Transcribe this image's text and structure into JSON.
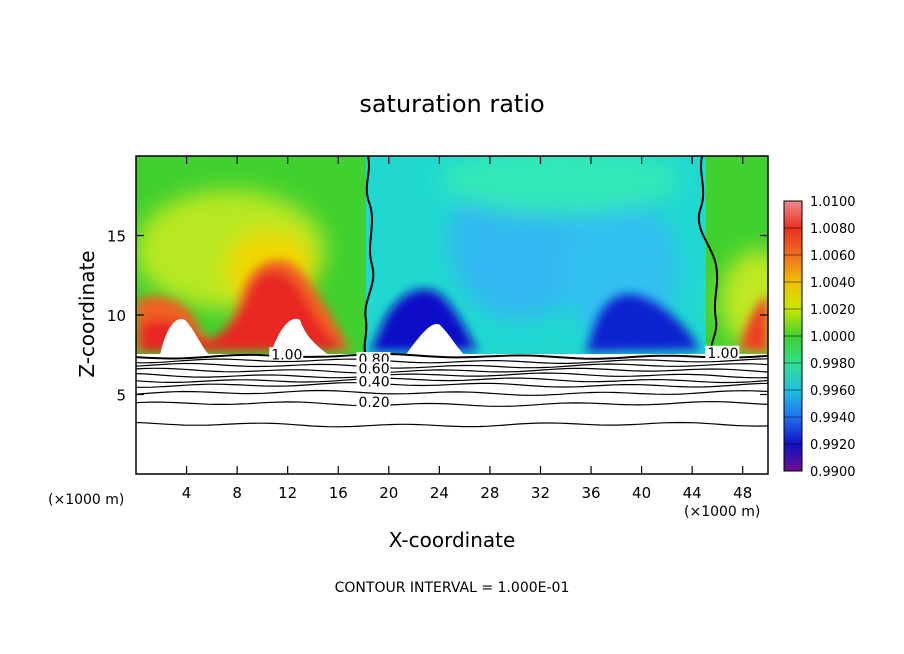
{
  "chart_data": {
    "type": "heatmap",
    "title": "saturation ratio",
    "xlabel": "X-coordinate",
    "ylabel": "Z-coordinate",
    "x_unit_label": "(×1000 m)",
    "x_unit_label_right": "(×1000 m)",
    "xlim": [
      0,
      50
    ],
    "ylim": [
      0,
      20
    ],
    "x_ticks": [
      4,
      8,
      12,
      16,
      20,
      24,
      28,
      32,
      36,
      40,
      44,
      48
    ],
    "y_ticks": [
      5,
      10,
      15
    ],
    "footer": "CONTOUR INTERVAL = 1.000E-01",
    "colorbar": {
      "labels": [
        "1.0100",
        "1.0080",
        "1.0060",
        "1.0040",
        "1.0020",
        "1.0000",
        "0.9980",
        "0.9960",
        "0.9940",
        "0.9920",
        "0.9900"
      ],
      "values": [
        1.01,
        1.008,
        1.006,
        1.004,
        1.002,
        1.0,
        0.998,
        0.996,
        0.994,
        0.992,
        0.99
      ],
      "colors": [
        "#f08a8a",
        "#e83020",
        "#f07020",
        "#f0c000",
        "#c8e800",
        "#40d030",
        "#30e090",
        "#20c0e0",
        "#2070f0",
        "#1010c0",
        "#701090"
      ]
    },
    "contour_labels": [
      {
        "text": "1.00",
        "x": 10.7,
        "z": 7.4
      },
      {
        "text": "0.80",
        "x": 17.6,
        "z": 7.1
      },
      {
        "text": "0.60",
        "x": 17.6,
        "z": 6.5
      },
      {
        "text": "0.40",
        "x": 17.6,
        "z": 5.7
      },
      {
        "text": "0.20",
        "x": 17.6,
        "z": 4.4
      },
      {
        "text": "1.00",
        "x": 45.2,
        "z": 7.5
      }
    ],
    "contour_levels_below": [
      7.4,
      7.1,
      6.8,
      6.5,
      6.2,
      5.9,
      5.6,
      5.1,
      4.4,
      3.1
    ]
  }
}
